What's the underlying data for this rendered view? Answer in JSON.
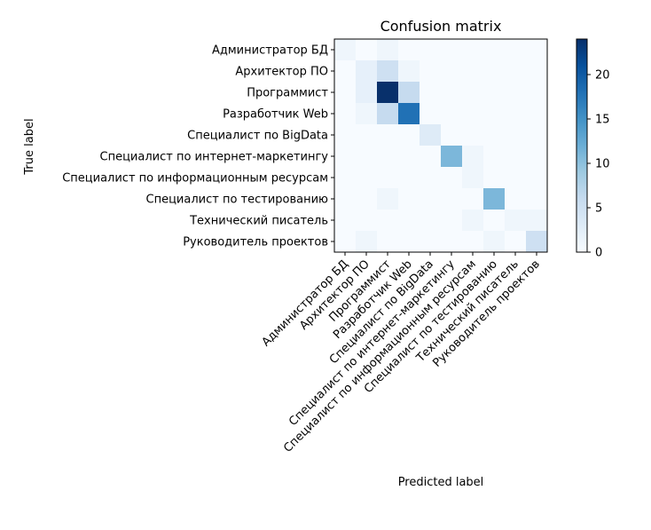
{
  "chart_data": {
    "type": "heatmap",
    "title": "Confusion matrix",
    "xlabel": "Predicted label",
    "ylabel": "True label",
    "colormap": "Blues",
    "labels": [
      "Администратор БД",
      "Архитектор ПО",
      "Программист",
      "Разработчик Web",
      "Специалист по BigData",
      "Специалист по интернет-маркетингу",
      "Специалист по информационным ресурсам",
      "Специалист по тестированию",
      "Технический писатель",
      "Руководитель проектов"
    ],
    "matrix": [
      [
        1,
        0,
        1,
        0,
        0,
        0,
        0,
        0,
        0,
        0
      ],
      [
        0,
        2,
        5,
        1,
        0,
        0,
        0,
        0,
        0,
        0
      ],
      [
        0,
        2,
        24,
        6,
        0,
        0,
        0,
        0,
        0,
        0
      ],
      [
        0,
        1,
        6,
        18,
        0,
        0,
        0,
        0,
        0,
        0
      ],
      [
        0,
        0,
        0,
        0,
        3,
        0,
        0,
        0,
        0,
        0
      ],
      [
        0,
        0,
        0,
        0,
        0,
        11,
        1,
        0,
        0,
        0
      ],
      [
        0,
        0,
        0,
        0,
        0,
        0,
        1,
        0,
        0,
        0
      ],
      [
        0,
        0,
        1,
        0,
        0,
        0,
        0,
        11,
        0,
        0
      ],
      [
        0,
        0,
        0,
        0,
        0,
        0,
        1,
        0,
        1,
        1
      ],
      [
        0,
        1,
        0,
        0,
        0,
        0,
        0,
        1,
        0,
        5
      ]
    ],
    "colorbar": {
      "min": 0,
      "max": 24,
      "ticks": [
        "0",
        "5",
        "10",
        "15",
        "20"
      ]
    }
  }
}
